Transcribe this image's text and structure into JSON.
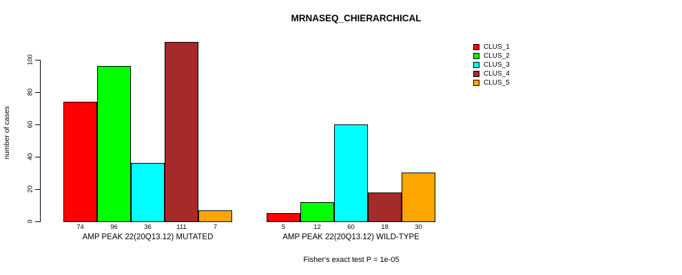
{
  "title": "MRNASEQ_CHIERARCHICAL",
  "y_axis": {
    "label": "number of cases",
    "ticks": [
      0,
      20,
      40,
      60,
      80,
      100
    ]
  },
  "annotation": "Fisher's exact test P = 1e-05",
  "legend": {
    "position": "right",
    "items": [
      {
        "label": "CLUS_1",
        "color": "#FF0000"
      },
      {
        "label": "CLUS_2",
        "color": "#00FF00"
      },
      {
        "label": "CLUS_3",
        "color": "#00FFFF"
      },
      {
        "label": "CLUS_4",
        "color": "#A52A2A"
      },
      {
        "label": "CLUS_5",
        "color": "#FFA500"
      }
    ]
  },
  "chart_data": {
    "type": "bar",
    "title": "MRNASEQ_CHIERARCHICAL",
    "ylabel": "number of cases",
    "xlabel": "",
    "ylim": [
      0,
      115
    ],
    "yticks": [
      0,
      20,
      40,
      60,
      80,
      100
    ],
    "grid": false,
    "legend_position": "right",
    "bar_value_labels_shown": true,
    "categories": [
      "AMP PEAK 22(20Q13.12) MUTATED",
      "AMP PEAK 22(20Q13.12) WILD-TYPE"
    ],
    "series": [
      {
        "name": "CLUS_1",
        "color": "#FF0000",
        "values": [
          74,
          5
        ]
      },
      {
        "name": "CLUS_2",
        "color": "#00FF00",
        "values": [
          96,
          12
        ]
      },
      {
        "name": "CLUS_3",
        "color": "#00FFFF",
        "values": [
          36,
          60
        ]
      },
      {
        "name": "CLUS_4",
        "color": "#A52A2A",
        "values": [
          111,
          18
        ]
      },
      {
        "name": "CLUS_5",
        "color": "#FFA500",
        "values": [
          7,
          30
        ]
      }
    ],
    "annotation": "Fisher's exact test P = 1e-05"
  }
}
